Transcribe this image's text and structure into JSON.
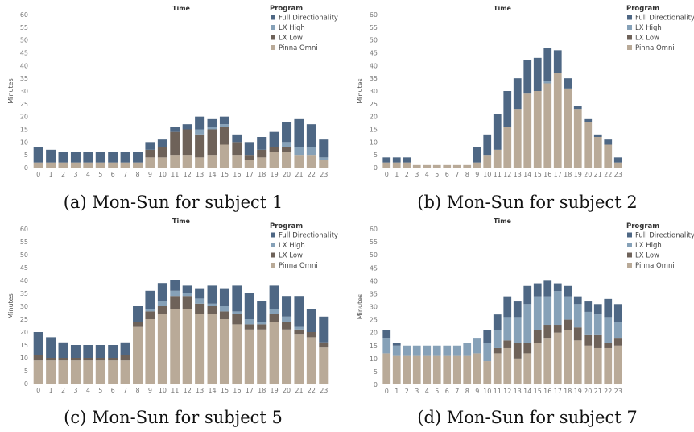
{
  "colors": {
    "Full Directionality": "#4e6784",
    "LX High": "#86a1b8",
    "LX Low": "#6e6259",
    "Pinna Omni": "#b9aa98"
  },
  "chart_data": [
    {
      "type": "bar",
      "stacked": true,
      "title": "Time",
      "ylabel": "Minutes",
      "caption": "(a) Mon-Sun for subject 1",
      "legend_title": "Program",
      "legend_position": "right",
      "ylim": [
        0,
        60
      ],
      "yticks": [
        0,
        5,
        10,
        15,
        20,
        25,
        30,
        35,
        40,
        45,
        50,
        55,
        60
      ],
      "categories": [
        "0",
        "1",
        "2",
        "3",
        "4",
        "5",
        "6",
        "7",
        "8",
        "9",
        "10",
        "11",
        "12",
        "13",
        "14",
        "15",
        "16",
        "17",
        "18",
        "19",
        "20",
        "21",
        "22",
        "23"
      ],
      "series": [
        {
          "name": "Pinna Omni",
          "values": [
            2,
            2,
            2,
            2,
            2,
            2,
            2,
            2,
            2,
            4,
            4,
            5,
            5,
            4,
            5,
            9,
            5,
            3,
            4,
            6,
            6,
            5,
            5,
            3
          ]
        },
        {
          "name": "LX Low",
          "values": [
            0,
            0,
            0,
            0,
            0,
            0,
            0,
            0,
            0,
            3,
            4,
            9,
            10,
            9,
            10,
            7,
            5,
            2,
            3,
            2,
            2,
            0,
            0,
            0
          ]
        },
        {
          "name": "LX High",
          "values": [
            0,
            0,
            0,
            0,
            0,
            0,
            0,
            0,
            0,
            0,
            0,
            0,
            0,
            2,
            1,
            1,
            0,
            0,
            0,
            0,
            2,
            3,
            3,
            1
          ]
        },
        {
          "name": "Full Directionality",
          "values": [
            6,
            5,
            4,
            4,
            4,
            4,
            4,
            4,
            4,
            3,
            3,
            2,
            2,
            5,
            3,
            3,
            3,
            5,
            5,
            6,
            8,
            11,
            9,
            7
          ]
        }
      ]
    },
    {
      "type": "bar",
      "stacked": true,
      "title": "Time",
      "ylabel": "Minutes",
      "caption": "(b) Mon-Sun for subject 2",
      "legend_title": "Program",
      "legend_position": "right",
      "ylim": [
        0,
        60
      ],
      "yticks": [
        0,
        5,
        10,
        15,
        20,
        25,
        30,
        35,
        40,
        45,
        50,
        55,
        60
      ],
      "categories": [
        "0",
        "1",
        "2",
        "3",
        "4",
        "5",
        "6",
        "7",
        "8",
        "9",
        "10",
        "11",
        "12",
        "13",
        "14",
        "15",
        "16",
        "17",
        "18",
        "19",
        "20",
        "21",
        "22",
        "23"
      ],
      "series": [
        {
          "name": "Pinna Omni",
          "values": [
            2,
            2,
            2,
            1,
            1,
            1,
            1,
            1,
            1,
            2,
            5,
            7,
            16,
            23,
            29,
            30,
            33,
            37,
            31,
            23,
            18,
            12,
            9,
            2
          ]
        },
        {
          "name": "LX Low",
          "values": [
            0,
            0,
            0,
            0,
            0,
            0,
            0,
            0,
            0,
            0,
            0,
            0,
            0,
            0,
            0,
            0,
            0,
            0,
            0,
            0,
            0,
            0,
            0,
            0
          ]
        },
        {
          "name": "LX High",
          "values": [
            0,
            0,
            0,
            0,
            0,
            0,
            0,
            0,
            0,
            0,
            0,
            0,
            0,
            0,
            0,
            0,
            1,
            0,
            0,
            0,
            0,
            0,
            0,
            0
          ]
        },
        {
          "name": "Full Directionality",
          "values": [
            2,
            2,
            2,
            0,
            0,
            0,
            0,
            0,
            0,
            6,
            8,
            14,
            14,
            12,
            13,
            13,
            13,
            9,
            4,
            1,
            1,
            1,
            2,
            2
          ]
        }
      ]
    },
    {
      "type": "bar",
      "stacked": true,
      "title": "Time",
      "ylabel": "Minutes",
      "caption": "(c) Mon-Sun for subject 5",
      "legend_title": "Program",
      "legend_position": "right",
      "ylim": [
        0,
        60
      ],
      "yticks": [
        0,
        5,
        10,
        15,
        20,
        25,
        30,
        35,
        40,
        45,
        50,
        55,
        60
      ],
      "categories": [
        "0",
        "1",
        "2",
        "3",
        "4",
        "5",
        "6",
        "7",
        "8",
        "9",
        "10",
        "11",
        "12",
        "13",
        "14",
        "15",
        "16",
        "17",
        "18",
        "19",
        "20",
        "21",
        "22",
        "23"
      ],
      "series": [
        {
          "name": "Pinna Omni",
          "values": [
            9,
            9,
            9,
            9,
            9,
            9,
            9,
            9,
            22,
            25,
            27,
            29,
            29,
            27,
            27,
            25,
            23,
            21,
            21,
            24,
            21,
            19,
            18,
            14
          ]
        },
        {
          "name": "LX Low",
          "values": [
            2,
            1,
            1,
            1,
            1,
            1,
            1,
            2,
            2,
            3,
            3,
            5,
            5,
            4,
            3,
            3,
            4,
            2,
            2,
            3,
            3,
            2,
            2,
            2
          ]
        },
        {
          "name": "LX High",
          "values": [
            0,
            0,
            0,
            0,
            0,
            0,
            0,
            0,
            0,
            1,
            2,
            2,
            1,
            2,
            1,
            2,
            1,
            2,
            1,
            2,
            2,
            1,
            0,
            0
          ]
        },
        {
          "name": "Full Directionality",
          "values": [
            9,
            8,
            6,
            5,
            5,
            5,
            5,
            5,
            6,
            7,
            7,
            4,
            3,
            4,
            7,
            7,
            10,
            10,
            8,
            9,
            8,
            12,
            9,
            10
          ]
        }
      ]
    },
    {
      "type": "bar",
      "stacked": true,
      "title": "Time",
      "ylabel": "Minutes",
      "caption": "(d) Mon-Sun for subject 7",
      "legend_title": "Program",
      "legend_position": "right",
      "ylim": [
        0,
        60
      ],
      "yticks": [
        0,
        5,
        10,
        15,
        20,
        25,
        30,
        35,
        40,
        45,
        50,
        55,
        60
      ],
      "categories": [
        "0",
        "1",
        "2",
        "3",
        "4",
        "5",
        "6",
        "7",
        "8",
        "9",
        "10",
        "11",
        "12",
        "13",
        "14",
        "15",
        "16",
        "17",
        "18",
        "19",
        "20",
        "21",
        "22",
        "23"
      ],
      "series": [
        {
          "name": "Pinna Omni",
          "values": [
            12,
            11,
            11,
            11,
            11,
            11,
            11,
            11,
            11,
            12,
            9,
            12,
            14,
            10,
            12,
            16,
            18,
            20,
            21,
            17,
            15,
            14,
            14,
            15
          ]
        },
        {
          "name": "LX Low",
          "values": [
            0,
            0,
            0,
            0,
            0,
            0,
            0,
            0,
            0,
            0,
            0,
            2,
            3,
            6,
            4,
            5,
            5,
            3,
            4,
            5,
            4,
            5,
            2,
            3
          ]
        },
        {
          "name": "LX High",
          "values": [
            6,
            4,
            4,
            4,
            4,
            4,
            4,
            4,
            5,
            6,
            7,
            7,
            9,
            10,
            15,
            13,
            11,
            13,
            9,
            9,
            9,
            8,
            10,
            6
          ]
        },
        {
          "name": "Full Directionality",
          "values": [
            3,
            1,
            0,
            0,
            0,
            0,
            0,
            0,
            0,
            0,
            5,
            6,
            8,
            6,
            7,
            5,
            6,
            3,
            4,
            3,
            4,
            4,
            7,
            7
          ]
        }
      ]
    }
  ]
}
